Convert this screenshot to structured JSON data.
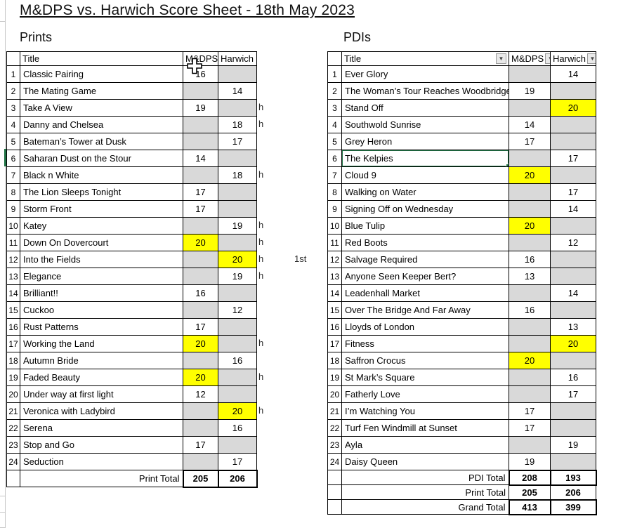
{
  "page_title": "M&DPS vs. Harwich Score Sheet - 18th May 2023",
  "colors": {
    "highlight_yellow": "#FFFF00",
    "empty_cell_gray": "#D9D9D9",
    "selection_green": "#217346"
  },
  "icons": {
    "filter_dropdown": "▼"
  },
  "prints": {
    "section_label": "Prints",
    "columns": [
      "Title",
      "M&DPS",
      "Harwich"
    ],
    "rows": [
      {
        "num": 1,
        "title": "Classic Pairing",
        "mdps": "16",
        "harwich": null,
        "highlight": null
      },
      {
        "num": 2,
        "title": "The Mating Game",
        "mdps": null,
        "harwich": "14",
        "highlight": null
      },
      {
        "num": 3,
        "title": "Take A View",
        "mdps": "19",
        "harwich": null,
        "highlight": null
      },
      {
        "num": 4,
        "title": "Danny and Chelsea",
        "mdps": null,
        "harwich": "18",
        "highlight": null
      },
      {
        "num": 5,
        "title": "Bateman’s Tower at Dusk",
        "mdps": null,
        "harwich": "17",
        "highlight": null
      },
      {
        "num": 6,
        "title": "Saharan Dust on the Stour",
        "mdps": "14",
        "harwich": null,
        "highlight": null
      },
      {
        "num": 7,
        "title": "Black n White",
        "mdps": null,
        "harwich": "18",
        "highlight": null
      },
      {
        "num": 8,
        "title": "The Lion Sleeps Tonight",
        "mdps": "17",
        "harwich": null,
        "highlight": null
      },
      {
        "num": 9,
        "title": "Storm Front",
        "mdps": "17",
        "harwich": null,
        "highlight": null
      },
      {
        "num": 10,
        "title": "Katey",
        "mdps": null,
        "harwich": "19",
        "highlight": null
      },
      {
        "num": 11,
        "title": "Down On Dovercourt",
        "mdps": "20",
        "harwich": null,
        "highlight": "mdps"
      },
      {
        "num": 12,
        "title": "Into the Fields",
        "mdps": null,
        "harwich": "20",
        "highlight": "harwich"
      },
      {
        "num": 13,
        "title": "Elegance",
        "mdps": null,
        "harwich": "19",
        "highlight": null
      },
      {
        "num": 14,
        "title": "Brilliant!!",
        "mdps": "16",
        "harwich": null,
        "highlight": null
      },
      {
        "num": 15,
        "title": "Cuckoo",
        "mdps": null,
        "harwich": "12",
        "highlight": null
      },
      {
        "num": 16,
        "title": "Rust Patterns",
        "mdps": "17",
        "harwich": null,
        "highlight": null
      },
      {
        "num": 17,
        "title": "Working the Land",
        "mdps": "20",
        "harwich": null,
        "highlight": "mdps"
      },
      {
        "num": 18,
        "title": "Autumn Bride",
        "mdps": null,
        "harwich": "16",
        "highlight": null
      },
      {
        "num": 19,
        "title": "Faded Beauty",
        "mdps": "20",
        "harwich": null,
        "highlight": "mdps"
      },
      {
        "num": 20,
        "title": "Under way at first light",
        "mdps": "12",
        "harwich": null,
        "highlight": null
      },
      {
        "num": 21,
        "title": "Veronica with Ladybird",
        "mdps": null,
        "harwich": "20",
        "highlight": "harwich"
      },
      {
        "num": 22,
        "title": "Serena",
        "mdps": null,
        "harwich": "16",
        "highlight": null
      },
      {
        "num": 23,
        "title": "Stop and Go",
        "mdps": "17",
        "harwich": null,
        "highlight": null
      },
      {
        "num": 24,
        "title": "Seduction",
        "mdps": null,
        "harwich": "17",
        "highlight": null
      }
    ],
    "totals": [
      {
        "label": "Print Total",
        "mdps": "205",
        "harwich": "206",
        "thick": true
      }
    ]
  },
  "pdis": {
    "section_label": "PDIs",
    "columns": [
      "Title",
      "M&DPS",
      "Harwich"
    ],
    "has_filter_buttons": true,
    "selected_row": 6,
    "rows": [
      {
        "num": 1,
        "title": "Ever Glory",
        "mdps": null,
        "harwich": "14",
        "highlight": null
      },
      {
        "num": 2,
        "title": "The Woman’s Tour Reaches Woodbridge",
        "mdps": "19",
        "harwich": null,
        "highlight": null
      },
      {
        "num": 3,
        "title": "Stand Off",
        "mdps": null,
        "harwich": "20",
        "highlight": "harwich"
      },
      {
        "num": 4,
        "title": "Southwold Sunrise",
        "mdps": "14",
        "harwich": null,
        "highlight": null
      },
      {
        "num": 5,
        "title": "Grey Heron",
        "mdps": "17",
        "harwich": null,
        "highlight": null
      },
      {
        "num": 6,
        "title": "The Kelpies",
        "mdps": null,
        "harwich": "17",
        "highlight": null,
        "selected": true
      },
      {
        "num": 7,
        "title": "Cloud 9",
        "mdps": "20",
        "harwich": null,
        "highlight": "mdps"
      },
      {
        "num": 8,
        "title": "Walking on Water",
        "mdps": null,
        "harwich": "17",
        "highlight": null
      },
      {
        "num": 9,
        "title": "Signing Off on Wednesday",
        "mdps": null,
        "harwich": "14",
        "highlight": null
      },
      {
        "num": 10,
        "title": "Blue Tulip",
        "mdps": "20",
        "harwich": null,
        "highlight": "mdps"
      },
      {
        "num": 11,
        "title": "Red Boots",
        "mdps": null,
        "harwich": "12",
        "highlight": null
      },
      {
        "num": 12,
        "title": "Salvage Required",
        "mdps": "16",
        "harwich": null,
        "highlight": null
      },
      {
        "num": 13,
        "title": "Anyone Seen Keeper Bert?",
        "mdps": "13",
        "harwich": null,
        "highlight": null
      },
      {
        "num": 14,
        "title": "Leadenhall Market",
        "mdps": null,
        "harwich": "14",
        "highlight": null
      },
      {
        "num": 15,
        "title": "Over The Bridge And Far Away",
        "mdps": "16",
        "harwich": null,
        "highlight": null
      },
      {
        "num": 16,
        "title": "Lloyds of London",
        "mdps": null,
        "harwich": "13",
        "highlight": null
      },
      {
        "num": 17,
        "title": "Fitness",
        "mdps": null,
        "harwich": "20",
        "highlight": "harwich"
      },
      {
        "num": 18,
        "title": "Saffron Crocus",
        "mdps": "20",
        "harwich": null,
        "highlight": "mdps"
      },
      {
        "num": 19,
        "title": "St Mark’s Square",
        "mdps": null,
        "harwich": "16",
        "highlight": null
      },
      {
        "num": 20,
        "title": "Fatherly Love",
        "mdps": null,
        "harwich": "17",
        "highlight": null
      },
      {
        "num": 21,
        "title": "I’m Watching You",
        "mdps": "17",
        "harwich": null,
        "highlight": null
      },
      {
        "num": 22,
        "title": "Turf Fen Windmill at Sunset",
        "mdps": "17",
        "harwich": null,
        "highlight": null
      },
      {
        "num": 23,
        "title": "Ayla",
        "mdps": null,
        "harwich": "19",
        "highlight": null
      },
      {
        "num": 24,
        "title": "Daisy Queen",
        "mdps": "19",
        "harwich": null,
        "highlight": null
      }
    ],
    "totals": [
      {
        "label": "PDI Total",
        "mdps": "208",
        "harwich": "193",
        "thick": true
      },
      {
        "label": "Print Total",
        "mdps": "205",
        "harwich": "206",
        "thick": false
      },
      {
        "label": "Grand Total",
        "mdps": "413",
        "harwich": "399",
        "thick": true
      }
    ]
  },
  "annotations": {
    "host_mark": "h",
    "host_rows": [
      3,
      4,
      7,
      10,
      11,
      12,
      13,
      17,
      19,
      21
    ],
    "first_place": {
      "label": "1st",
      "row": 12
    }
  }
}
